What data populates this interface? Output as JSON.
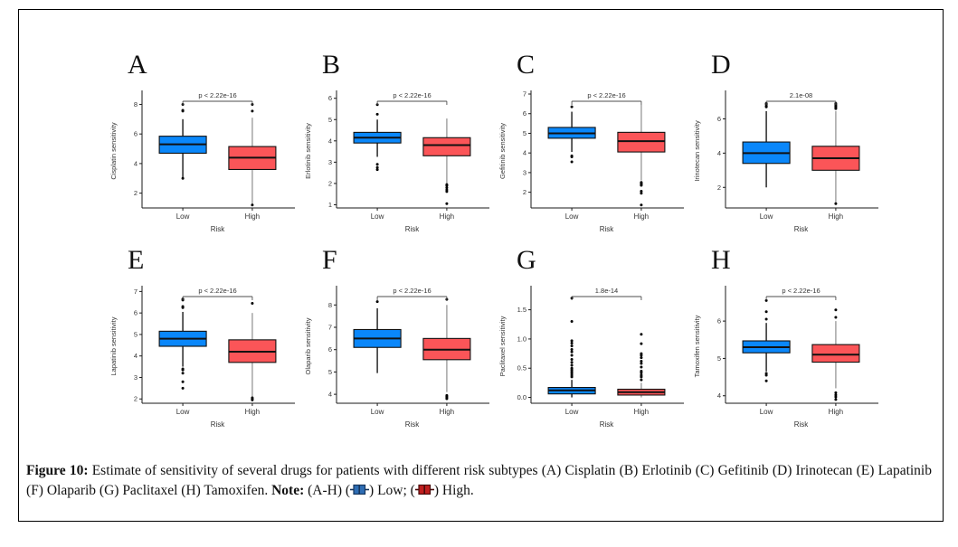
{
  "figure": {
    "caption_prefix": "Figure 10:",
    "caption_body": " Estimate of sensitivity of several drugs for patients with different risk subtypes (A) Cisplatin (B) Erlotinib (C) Gefitinib (D) Irinotecan (E) Lapatinib (F) Olaparib (G) Paclitaxel (H) Tamoxifen. ",
    "note_label": "Note:",
    "note_pre": " (A-H) (",
    "note_mid": ") Low; (",
    "note_post": ") High."
  },
  "colors": {
    "low_fill": "#0a87fa",
    "high_fill": "#fb5558",
    "low_whisker": "#1a1a1a",
    "high_whisker": "#9e9e9e",
    "box_border": "#111111",
    "axis": "#1a1a1a",
    "bracket": "#4d4d4d",
    "caption_low": "#2e6db4",
    "caption_low_border": "#16355c",
    "caption_high": "#c01f1f",
    "caption_high_border": "#4a0c0c"
  },
  "chart_data": [
    {
      "type": "box",
      "label": "A",
      "ylabel": "Cisplatin sensitivity",
      "xlabel": "Risk",
      "categories": [
        "Low",
        "High"
      ],
      "pvalue": "p < 2.22e-16",
      "ylim": [
        1.0,
        8.7
      ],
      "yticks": [
        2,
        4,
        6,
        8
      ],
      "ytick_labels": [
        "2",
        "4",
        "6",
        "8"
      ],
      "series": [
        {
          "name": "Low",
          "lo": 3.05,
          "q1": 4.7,
          "med": 5.3,
          "q3": 5.85,
          "hi": 7.0,
          "outliers": [
            8.0,
            7.6,
            7.55,
            3.0
          ]
        },
        {
          "name": "High",
          "lo": 1.2,
          "q1": 3.6,
          "med": 4.4,
          "q3": 5.15,
          "hi": 7.1,
          "outliers": [
            8.0,
            7.55,
            1.2
          ]
        }
      ]
    },
    {
      "type": "box",
      "label": "B",
      "ylabel": "Erlotinib sensitivity",
      "xlabel": "Risk",
      "categories": [
        "Low",
        "High"
      ],
      "pvalue": "p < 2.22e-16",
      "ylim": [
        0.85,
        6.2
      ],
      "yticks": [
        1,
        2,
        3,
        4,
        5,
        6
      ],
      "ytick_labels": [
        "1",
        "2",
        "3",
        "4",
        "5",
        "6"
      ],
      "series": [
        {
          "name": "Low",
          "lo": 3.25,
          "q1": 3.9,
          "med": 4.15,
          "q3": 4.4,
          "hi": 5.0,
          "outliers": [
            5.7,
            5.25,
            2.9,
            2.75,
            2.65
          ]
        },
        {
          "name": "High",
          "lo": 2.0,
          "q1": 3.3,
          "med": 3.8,
          "q3": 4.15,
          "hi": 5.05,
          "outliers": [
            1.95,
            1.9,
            1.8,
            1.7,
            1.62,
            1.05
          ]
        }
      ]
    },
    {
      "type": "box",
      "label": "C",
      "ylabel": "Gefitinib sensitivity",
      "xlabel": "Risk",
      "categories": [
        "Low",
        "High"
      ],
      "pvalue": "p < 2.22e-16",
      "ylim": [
        1.2,
        7.0
      ],
      "yticks": [
        2,
        3,
        4,
        5,
        6,
        7
      ],
      "ytick_labels": [
        "2",
        "3",
        "4",
        "5",
        "6",
        "7"
      ],
      "series": [
        {
          "name": "Low",
          "lo": 4.05,
          "q1": 4.75,
          "med": 5.0,
          "q3": 5.3,
          "hi": 6.1,
          "outliers": [
            6.35,
            3.85,
            3.8,
            3.55
          ]
        },
        {
          "name": "High",
          "lo": 2.6,
          "q1": 4.05,
          "med": 4.6,
          "q3": 5.05,
          "hi": 6.45,
          "outliers": [
            2.5,
            2.45,
            2.4,
            2.35,
            2.05,
            1.95,
            1.35
          ]
        }
      ]
    },
    {
      "type": "box",
      "label": "D",
      "ylabel": "Irinotecan sensitivity",
      "xlabel": "Risk",
      "categories": [
        "Low",
        "High"
      ],
      "pvalue": "2.1e-08",
      "ylim": [
        0.8,
        7.45
      ],
      "yticks": [
        2,
        4,
        6
      ],
      "ytick_labels": [
        "2",
        "4",
        "6"
      ],
      "series": [
        {
          "name": "Low",
          "lo": 2.0,
          "q1": 3.4,
          "med": 4.0,
          "q3": 4.65,
          "hi": 6.45,
          "outliers": [
            6.9,
            6.85,
            6.75,
            6.7
          ]
        },
        {
          "name": "High",
          "lo": 1.05,
          "q1": 3.0,
          "med": 3.7,
          "q3": 4.4,
          "hi": 6.45,
          "outliers": [
            6.9,
            6.82,
            6.75,
            6.68,
            6.6,
            1.05
          ]
        }
      ]
    },
    {
      "type": "box",
      "label": "E",
      "ylabel": "Lapatinib sensitivity",
      "xlabel": "Risk",
      "categories": [
        "Low",
        "High"
      ],
      "pvalue": "p < 2.22e-16",
      "ylim": [
        1.8,
        7.1
      ],
      "yticks": [
        2,
        3,
        4,
        5,
        6,
        7
      ],
      "ytick_labels": [
        "2",
        "3",
        "4",
        "5",
        "6",
        "7"
      ],
      "series": [
        {
          "name": "Low",
          "lo": 3.5,
          "q1": 4.45,
          "med": 4.8,
          "q3": 5.15,
          "hi": 6.05,
          "outliers": [
            6.65,
            6.6,
            6.3,
            6.25,
            3.4,
            3.35,
            3.2,
            2.8,
            2.5
          ]
        },
        {
          "name": "High",
          "lo": 2.1,
          "q1": 3.7,
          "med": 4.2,
          "q3": 4.75,
          "hi": 6.0,
          "outliers": [
            6.45,
            2.05,
            2.0,
            1.95
          ]
        }
      ]
    },
    {
      "type": "box",
      "label": "F",
      "ylabel": "Olaparib sensitivity",
      "xlabel": "Risk",
      "categories": [
        "Low",
        "High"
      ],
      "pvalue": "p < 2.22e-16",
      "ylim": [
        3.6,
        8.7
      ],
      "yticks": [
        4,
        5,
        6,
        7,
        8
      ],
      "ytick_labels": [
        "4",
        "5",
        "6",
        "7",
        "8"
      ],
      "series": [
        {
          "name": "Low",
          "lo": 4.95,
          "q1": 6.1,
          "med": 6.5,
          "q3": 6.9,
          "hi": 7.85,
          "outliers": [
            8.15
          ]
        },
        {
          "name": "High",
          "lo": 4.1,
          "q1": 5.55,
          "med": 6.0,
          "q3": 6.5,
          "hi": 8.0,
          "outliers": [
            8.25,
            3.95,
            3.9,
            3.85,
            3.8
          ]
        }
      ]
    },
    {
      "type": "box",
      "label": "G",
      "ylabel": "Paclitaxel sensitivity",
      "xlabel": "Risk",
      "categories": [
        "Low",
        "High"
      ],
      "pvalue": "1.8e-14",
      "ylim": [
        -0.1,
        1.85
      ],
      "yticks": [
        0,
        0.5,
        1.0,
        1.5
      ],
      "ytick_labels": [
        "0.0",
        "0.5",
        "1.0",
        "1.5"
      ],
      "series": [
        {
          "name": "Low",
          "lo": 0.0,
          "q1": 0.06,
          "med": 0.12,
          "q3": 0.17,
          "hi": 0.3,
          "outliers": [
            1.7,
            1.3,
            0.97,
            0.93,
            0.88,
            0.82,
            0.78,
            0.72,
            0.65,
            0.6,
            0.55,
            0.5,
            0.47,
            0.44,
            0.41,
            0.38,
            0.35
          ]
        },
        {
          "name": "High",
          "lo": 0.0,
          "q1": 0.04,
          "med": 0.09,
          "q3": 0.14,
          "hi": 0.25,
          "outliers": [
            1.08,
            0.92,
            0.75,
            0.72,
            0.68,
            0.62,
            0.58,
            0.52,
            0.45,
            0.42,
            0.38,
            0.35,
            0.3
          ]
        }
      ]
    },
    {
      "type": "box",
      "label": "H",
      "ylabel": "Tamoxifen sensitivity",
      "xlabel": "Risk",
      "categories": [
        "Low",
        "High"
      ],
      "pvalue": "p < 2.22e-16",
      "ylim": [
        3.8,
        6.85
      ],
      "yticks": [
        4,
        5,
        6
      ],
      "ytick_labels": [
        "4",
        "5",
        "6"
      ],
      "series": [
        {
          "name": "Low",
          "lo": 4.65,
          "q1": 5.15,
          "med": 5.3,
          "q3": 5.47,
          "hi": 5.95,
          "outliers": [
            6.55,
            6.25,
            6.05,
            4.6,
            4.55,
            4.4
          ]
        },
        {
          "name": "High",
          "lo": 4.2,
          "q1": 4.9,
          "med": 5.1,
          "q3": 5.37,
          "hi": 6.0,
          "outliers": [
            6.3,
            6.1,
            4.08,
            4.02,
            3.97,
            3.9
          ]
        }
      ]
    }
  ]
}
